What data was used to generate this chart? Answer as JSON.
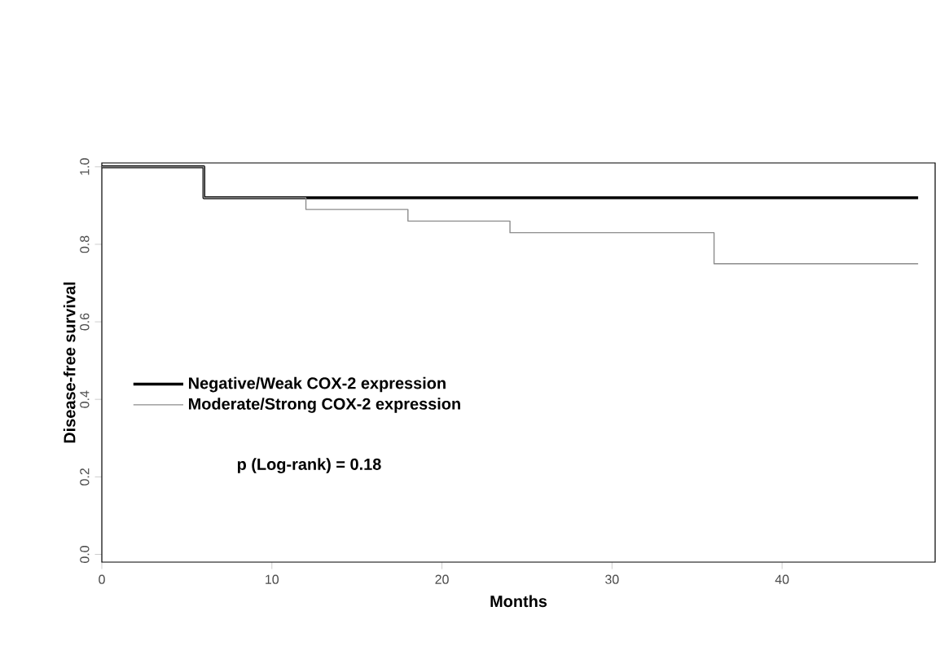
{
  "chart_data": {
    "type": "step",
    "xlabel": "Months",
    "ylabel": "Disease-free survival",
    "x": [
      0,
      6,
      12,
      18,
      24,
      36,
      48
    ],
    "series": [
      {
        "name": "Negative/Weak COX-2 expression",
        "color": "#000000",
        "values": [
          1.0,
          0.92,
          0.92,
          0.92,
          0.92,
          0.92,
          0.92
        ]
      },
      {
        "name": "Moderate/Strong COX-2 expression",
        "color": "#8c8c8c",
        "values": [
          1.0,
          0.92,
          0.89,
          0.86,
          0.83,
          0.75,
          0.75
        ]
      }
    ],
    "annotations": [
      "p (Log-rank) = 0.18"
    ],
    "xlim": [
      0,
      49
    ],
    "ylim": [
      -0.02,
      1.01
    ],
    "xticks": [
      0,
      10,
      20,
      30,
      40
    ],
    "yticks": [
      {
        "value": 0,
        "label": "0.0"
      },
      {
        "value": 0.2,
        "label": "0.2"
      },
      {
        "value": 0.4,
        "label": "0.4"
      },
      {
        "value": 0.6,
        "label": "0.6"
      },
      {
        "value": 0.8,
        "label": "0.8"
      },
      {
        "value": 1,
        "label": "1.0"
      }
    ],
    "legend": "left",
    "grid": false,
    "marker": "none",
    "line_style": "solid"
  }
}
